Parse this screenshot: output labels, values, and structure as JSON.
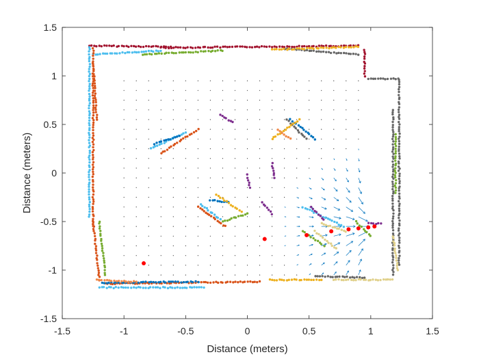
{
  "chart_data": {
    "type": "scatter",
    "title": "",
    "xlabel": "Distance (meters)",
    "ylabel": "Distance (meters)",
    "xlim": [
      -1.5,
      1.5
    ],
    "ylim": [
      -1.5,
      1.5
    ],
    "x_ticks": [
      -1.5,
      -1,
      -0.5,
      0,
      0.5,
      1,
      1.5
    ],
    "y_ticks": [
      -1.5,
      -1,
      -0.5,
      0,
      0.5,
      1,
      1.5
    ],
    "x_tick_labels": [
      "-1.5",
      "-1",
      "-0.5",
      "0",
      "0.5",
      "1",
      "1.5"
    ],
    "y_tick_labels": [
      "-1.5",
      "-1",
      "-0.5",
      "0",
      "0.5",
      "1",
      "1.5"
    ],
    "grid": false,
    "box": true,
    "legend": "none",
    "colors": {
      "blue": "#0072BD",
      "orange": "#D95319",
      "yellow": "#EDB120",
      "purple": "#7E2F8E",
      "green": "#77AC30",
      "cyan": "#4DBEEE",
      "darkred": "#A2142F",
      "gray": "#666666",
      "sand": "#E0D08A",
      "orange_light": "#F08A4B",
      "red": "#FF0000"
    },
    "series": [
      {
        "color": "darkred",
        "segments": [
          [
            -1.28,
            1.31,
            -0.62,
            1.3
          ],
          [
            -0.7,
            1.29,
            0.9,
            1.31
          ],
          [
            0.95,
            1.27,
            0.95,
            1.0
          ]
        ]
      },
      {
        "color": "cyan",
        "segments": [
          [
            -1.28,
            1.3,
            -1.28,
            -0.45
          ],
          [
            -1.25,
            1.22,
            -0.7,
            1.26
          ],
          [
            -1.2,
            -1.18,
            -0.35,
            -1.18
          ],
          [
            -0.78,
            0.25,
            -0.5,
            0.42
          ],
          [
            -0.38,
            -0.32,
            -0.22,
            -0.48
          ],
          [
            0.45,
            -0.35,
            0.78,
            -0.55
          ]
        ]
      },
      {
        "color": "orange",
        "segments": [
          [
            -1.25,
            1.28,
            -1.25,
            -0.55
          ],
          [
            -1.25,
            -0.5,
            -1.2,
            -1.1
          ],
          [
            -1.15,
            -1.14,
            0.1,
            -1.12
          ],
          [
            -0.7,
            0.2,
            -0.4,
            0.45
          ],
          [
            -0.4,
            -0.35,
            -0.18,
            -0.55
          ],
          [
            -1.25,
            1.12,
            -1.22,
            0.55
          ]
        ]
      },
      {
        "color": "blue",
        "segments": [
          [
            -1.18,
            -1.13,
            -0.4,
            -1.12
          ],
          [
            -0.75,
            0.3,
            -0.55,
            0.38
          ],
          [
            -0.3,
            -0.28,
            -0.15,
            -0.3
          ],
          [
            0.35,
            0.55,
            0.55,
            0.35
          ]
        ]
      },
      {
        "color": "gray",
        "segments": [
          [
            0.9,
            1.22,
            0.3,
            1.28
          ],
          [
            0.98,
            0.97,
            1.22,
            0.97
          ],
          [
            1.23,
            0.96,
            1.23,
            -0.95
          ],
          [
            1.18,
            0.65,
            1.18,
            -1.05
          ],
          [
            0.55,
            -1.06,
            0.95,
            -1.08
          ],
          [
            0.32,
            0.55,
            0.48,
            0.35
          ]
        ]
      },
      {
        "color": "green",
        "segments": [
          [
            -1.2,
            -0.5,
            -1.15,
            -1.05
          ],
          [
            -0.85,
            1.22,
            -0.2,
            1.26
          ],
          [
            0.45,
            -0.6,
            0.62,
            -0.75
          ],
          [
            -0.2,
            -0.5,
            0.0,
            -0.42
          ],
          [
            0.88,
            -0.5,
            1.0,
            -0.65
          ],
          [
            1.2,
            0.4,
            1.2,
            -0.2
          ]
        ]
      },
      {
        "color": "yellow",
        "segments": [
          [
            0.2,
            1.27,
            0.9,
            1.3
          ],
          [
            0.2,
            0.35,
            0.42,
            0.55
          ],
          [
            -0.25,
            -0.22,
            -0.05,
            -0.4
          ],
          [
            0.18,
            -1.1,
            0.6,
            -1.1
          ]
        ]
      },
      {
        "color": "purple",
        "segments": [
          [
            0.0,
            -0.02,
            0.02,
            -0.15
          ],
          [
            0.12,
            -0.3,
            0.2,
            -0.42
          ],
          [
            0.52,
            -0.35,
            0.62,
            -0.48
          ],
          [
            0.98,
            -0.52,
            1.08,
            -0.52
          ],
          [
            -0.22,
            0.6,
            -0.12,
            0.52
          ],
          [
            0.2,
            0.1,
            0.22,
            -0.05
          ]
        ]
      },
      {
        "color": "sand",
        "segments": [
          [
            0.55,
            -0.6,
            0.72,
            -0.78
          ],
          [
            0.7,
            -1.1,
            1.18,
            -1.1
          ],
          [
            1.18,
            -0.65,
            1.22,
            -1.0
          ],
          [
            0.6,
            -0.52,
            0.8,
            -0.6
          ]
        ]
      },
      {
        "color": "orange_light",
        "segments": [
          [
            -1.22,
            -1.1,
            -0.9,
            -1.12
          ],
          [
            0.25,
            0.45,
            0.35,
            0.35
          ]
        ]
      }
    ],
    "highlight_points": {
      "color": "red",
      "points": [
        [
          -0.84,
          -0.93
        ],
        [
          0.14,
          -0.68
        ],
        [
          0.48,
          -0.64
        ],
        [
          0.68,
          -0.6
        ],
        [
          0.82,
          -0.58
        ],
        [
          0.9,
          -0.57
        ],
        [
          0.98,
          -0.56
        ],
        [
          1.03,
          -0.55
        ]
      ]
    },
    "quiver": {
      "color": "#0072BD",
      "grid_x": [
        -1.0,
        0.95,
        0.1
      ],
      "grid_y": [
        -1.05,
        1.0,
        0.1
      ],
      "field_center": [
        1.1,
        -0.55
      ]
    }
  }
}
